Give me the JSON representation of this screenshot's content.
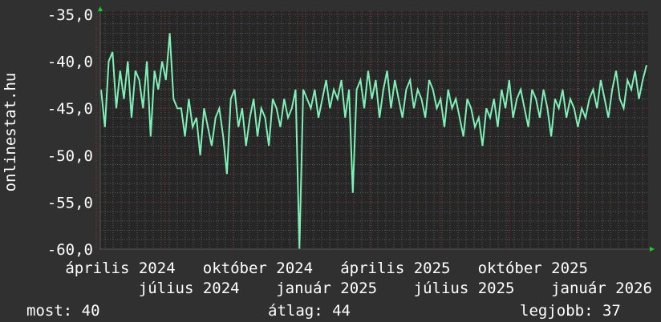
{
  "chart_data": {
    "type": "line",
    "ylabel": "onlinestat.hu",
    "xlabel": "",
    "ylim": [
      -60,
      -35
    ],
    "yticks": [
      "-35,0",
      "-40,0",
      "-45,0",
      "-50,0",
      "-55,0",
      "-60,0"
    ],
    "ytick_values": [
      -35,
      -40,
      -45,
      -50,
      -55,
      -60
    ],
    "xticks": [
      "április 2024",
      "július 2024",
      "október 2024",
      "január 2025",
      "április 2025",
      "július 2025",
      "október 2025",
      "január 2026"
    ],
    "grid": true,
    "colors": {
      "background": "#303030",
      "plot": "#262626",
      "line": "#7ff0b8",
      "major_grid": "#8a3a3a",
      "minor_grid": "#5a5a5a",
      "arrow": "#22cc22"
    },
    "series": [
      {
        "values": [
          -43,
          -47,
          -40,
          -39,
          -45,
          -41,
          -44,
          -40,
          -46,
          -41,
          -42,
          -45,
          -40,
          -48,
          -41,
          -43,
          -40,
          -42,
          -37,
          -44,
          -45,
          -45,
          -48,
          -44,
          -47,
          -46,
          -50,
          -45,
          -47,
          -49,
          -46,
          -45,
          -48,
          -52,
          -44,
          -43,
          -47,
          -45,
          -49,
          -46,
          -44,
          -48,
          -45,
          -46,
          -49,
          -44,
          -45,
          -47,
          -44,
          -46,
          -45,
          -43,
          -60,
          -43,
          -44,
          -45,
          -43,
          -46,
          -44,
          -42,
          -45,
          -43,
          -44,
          -42,
          -46,
          -43,
          -54,
          -43,
          -42,
          -45,
          -41,
          -44,
          -42,
          -46,
          -43,
          -41,
          -45,
          -42,
          -44,
          -46,
          -43,
          -42,
          -45,
          -43,
          -44,
          -46,
          -42,
          -43,
          -45,
          -44,
          -47,
          -43,
          -45,
          -44,
          -46,
          -48,
          -44,
          -45,
          -47,
          -46,
          -49,
          -45,
          -46,
          -44,
          -47,
          -43,
          -45,
          -42,
          -46,
          -44,
          -43,
          -45,
          -47,
          -43,
          -44,
          -46,
          -43,
          -45,
          -48,
          -44,
          -45,
          -43,
          -46,
          -44,
          -45,
          -47,
          -45,
          -46,
          -44,
          -43,
          -45,
          -42,
          -44,
          -46,
          -43,
          -41,
          -44,
          -45,
          -42,
          -43,
          -41,
          -44,
          -42,
          -40.4
        ]
      }
    ]
  },
  "legend": {
    "current": "most: 40",
    "average": "átlag: 44",
    "best": "legjobb: 37"
  }
}
